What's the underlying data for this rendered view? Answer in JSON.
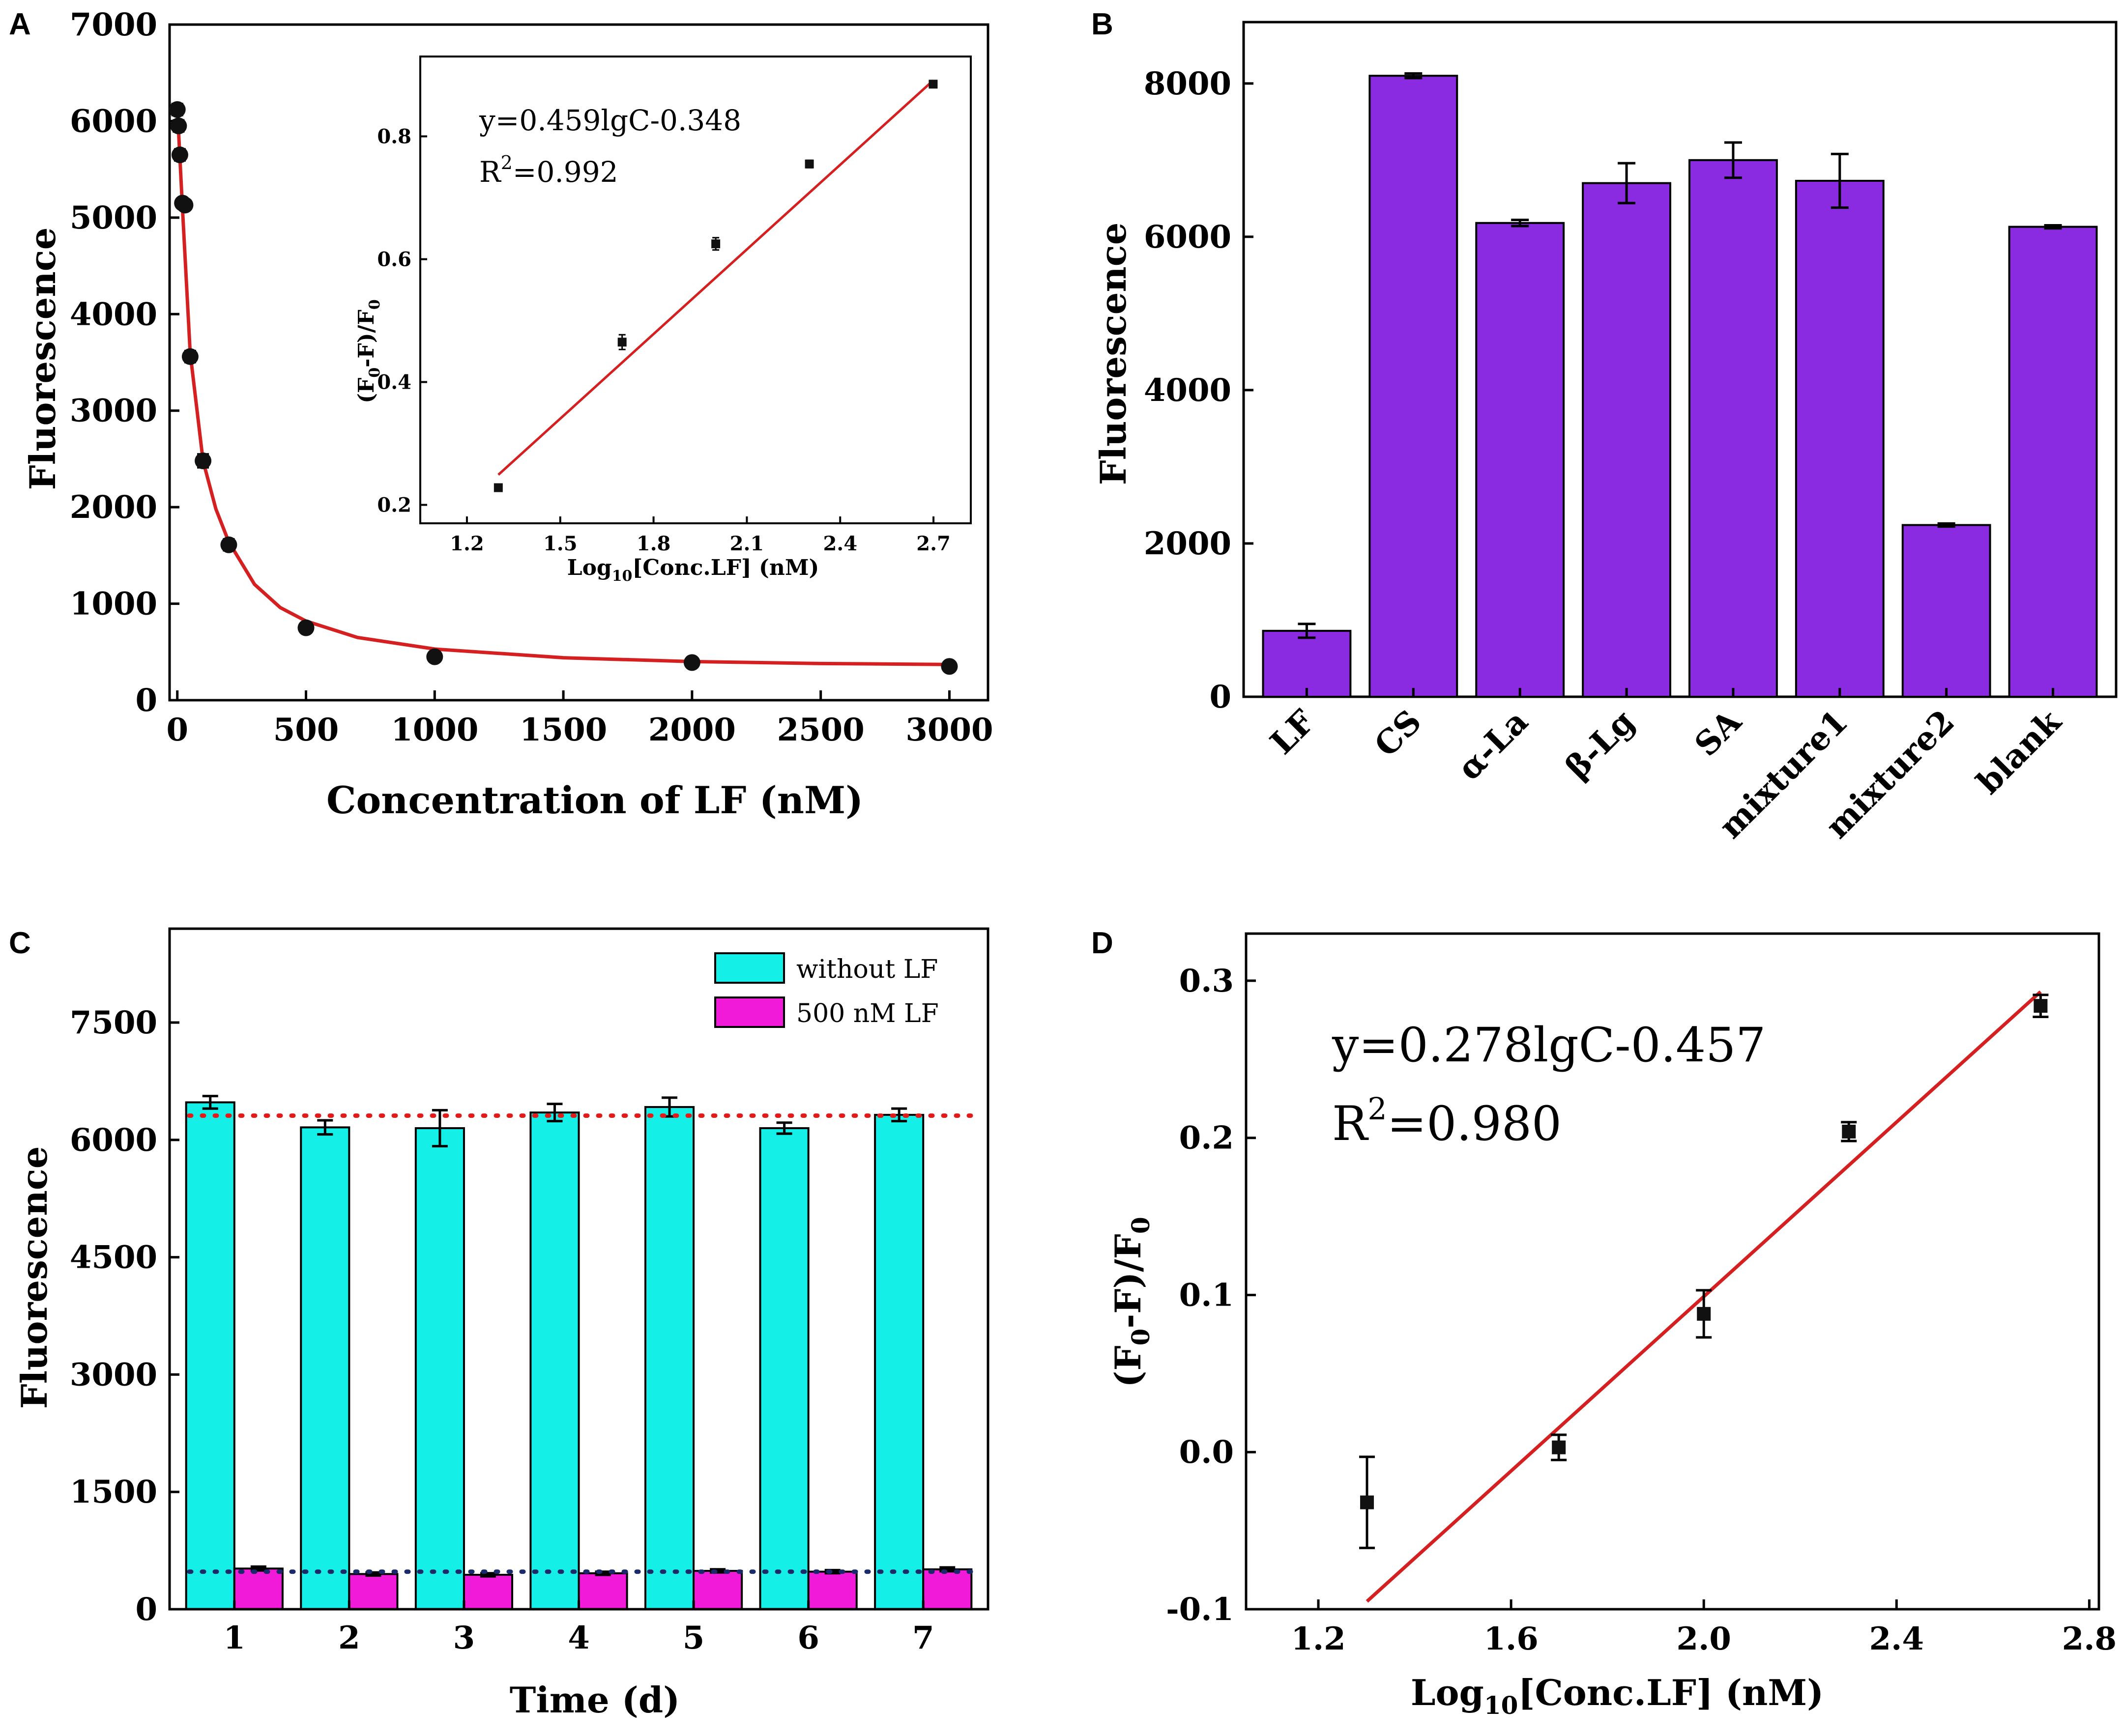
{
  "figure": {
    "panel_letters": [
      "A",
      "B",
      "C",
      "D"
    ],
    "colors": {
      "axis": "#000000",
      "fit_line": "#d42020",
      "marker": "#111111",
      "bar_purple": "#8a2be2",
      "bar_cyan": "#14f0e8",
      "bar_magenta": "#f21ad9",
      "dotted_red": "#e31a1a",
      "dotted_navy": "#1b2a6b"
    }
  },
  "chart_data": [
    {
      "panel": "A",
      "type": "scatter",
      "xlabel": "Concentration of LF (nM)",
      "ylabel": "Fluorescence",
      "xlim": [
        -30,
        3150
      ],
      "ylim": [
        0,
        7000
      ],
      "xticks": [
        0,
        500,
        1000,
        1500,
        2000,
        2500,
        3000
      ],
      "yticks": [
        0,
        1000,
        2000,
        3000,
        4000,
        5000,
        6000,
        7000
      ],
      "points": {
        "x": [
          0,
          5,
          10,
          20,
          30,
          50,
          100,
          200,
          500,
          1000,
          2000,
          3000
        ],
        "y": [
          6120,
          5950,
          5650,
          5150,
          5130,
          3560,
          2480,
          1610,
          750,
          450,
          390,
          350
        ],
        "yerr": [
          60,
          60,
          60,
          50,
          50,
          60,
          70,
          60,
          40,
          30,
          30,
          30
        ]
      },
      "fit": {
        "x": [
          0,
          20,
          50,
          100,
          150,
          200,
          300,
          400,
          500,
          700,
          1000,
          1500,
          2000,
          2500,
          3000
        ],
        "y": [
          6150,
          5100,
          3600,
          2480,
          1980,
          1640,
          1200,
          960,
          820,
          650,
          530,
          440,
          400,
          380,
          370
        ]
      },
      "inset": {
        "type": "scatter",
        "xlabel_main": "Log",
        "xlabel_sub": "10",
        "xlabel_rest": "[Conc.LF] (nM)",
        "ylabel_a": "(F",
        "ylabel_sub1": "0",
        "ylabel_b": "-F)/F",
        "ylabel_sub2": "0",
        "xlim": [
          1.05,
          2.82
        ],
        "ylim": [
          0.17,
          0.93
        ],
        "xticks": [
          "1.2",
          "1.5",
          "1.8",
          "2.1",
          "2.4",
          "2.7"
        ],
        "yticks": [
          "0.2",
          "0.4",
          "0.6",
          "0.8"
        ],
        "points": {
          "x": [
            1.301,
            1.699,
            2.0,
            2.301,
            2.699
          ],
          "y": [
            0.228,
            0.465,
            0.625,
            0.755,
            0.885
          ],
          "yerr": [
            0.005,
            0.012,
            0.01,
            0.006,
            0.004
          ]
        },
        "fit": {
          "x": [
            1.301,
            2.699
          ],
          "y": [
            0.249,
            0.891
          ]
        },
        "equation": "y=0.459lgC-0.348",
        "r2_main": "R",
        "r2_sup": "2",
        "r2_value": "=0.992"
      }
    },
    {
      "panel": "B",
      "type": "bar",
      "ylabel": "Fluorescence",
      "xlabel": "",
      "ylim": [
        0,
        8800
      ],
      "yticks": [
        0,
        2000,
        4000,
        6000,
        8000
      ],
      "categories": [
        "LF",
        "CS",
        "α-La",
        "β-Lg",
        "SA",
        "mixture1",
        "mixture2",
        "blank"
      ],
      "values": [
        860,
        8100,
        6180,
        6700,
        7000,
        6730,
        2240,
        6130
      ],
      "errors": [
        90,
        30,
        40,
        260,
        230,
        350,
        20,
        20
      ]
    },
    {
      "panel": "C",
      "type": "bar",
      "xlabel": "Time (d)",
      "ylabel": "Fluorescence",
      "ylim": [
        0,
        8700
      ],
      "yticks": [
        0,
        1500,
        3000,
        4500,
        6000,
        7500
      ],
      "categories": [
        "1",
        "2",
        "3",
        "4",
        "5",
        "6",
        "7"
      ],
      "series": [
        {
          "name": "without LF",
          "values": [
            6480,
            6160,
            6150,
            6350,
            6420,
            6150,
            6320
          ],
          "errors": [
            80,
            90,
            230,
            110,
            120,
            70,
            80
          ]
        },
        {
          "name": "500 nM LF",
          "values": [
            520,
            450,
            440,
            460,
            490,
            480,
            510
          ],
          "errors": [
            25,
            20,
            20,
            20,
            20,
            20,
            25
          ]
        }
      ],
      "reference_lines": [
        6310,
        480
      ],
      "legend_position": "top-right"
    },
    {
      "panel": "D",
      "type": "scatter",
      "xlabel_main": "Log",
      "xlabel_sub": "10",
      "xlabel_rest": "[Conc.LF] (nM)",
      "ylabel_a": "(F",
      "ylabel_sub1": "0",
      "ylabel_b": "-F)/F",
      "ylabel_sub2": "0",
      "xlim": [
        1.05,
        2.82
      ],
      "ylim": [
        -0.1,
        0.33
      ],
      "xticks": [
        "1.2",
        "1.6",
        "2.0",
        "2.4",
        "2.8"
      ],
      "yticks": [
        "-0.1",
        "0.0",
        "0.1",
        "0.2",
        "0.3"
      ],
      "points": {
        "x": [
          1.301,
          1.699,
          2.0,
          2.301,
          2.699
        ],
        "y": [
          -0.032,
          0.003,
          0.088,
          0.204,
          0.284
        ],
        "yerr": [
          0.029,
          0.008,
          0.015,
          0.006,
          0.007
        ]
      },
      "fit": {
        "x": [
          1.301,
          2.699
        ],
        "y": [
          -0.095,
          0.293
        ]
      },
      "equation": "y=0.278lgC-0.457",
      "r2_main": "R",
      "r2_sup": "2",
      "r2_value": "=0.980"
    }
  ]
}
